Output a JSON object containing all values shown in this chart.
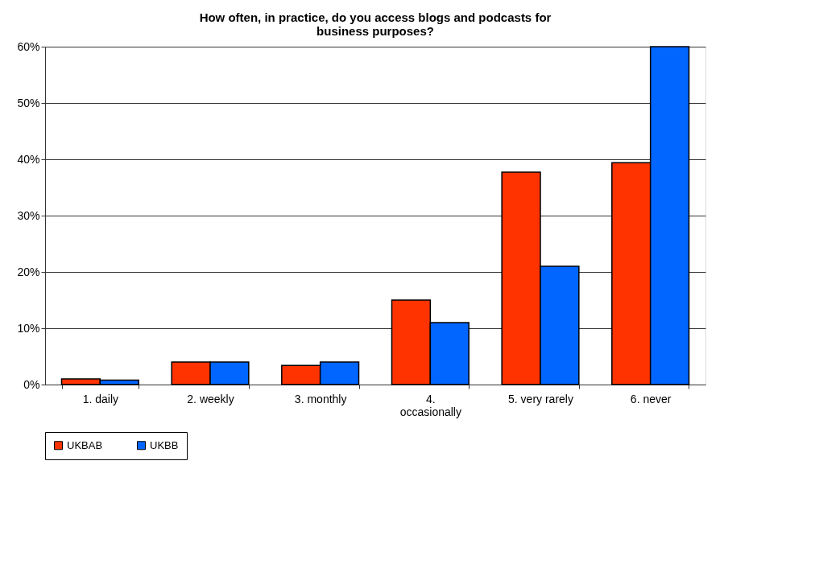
{
  "chart_data": {
    "type": "bar",
    "title": "How often, in practice, do you access blogs and podcasts for business purposes?",
    "categories": [
      "1. daily",
      "2. weekly",
      "3. monthly",
      "4. occasionally",
      "5. very rarely",
      "6. never"
    ],
    "series": [
      {
        "name": "UKBAB",
        "color": "#ff3300",
        "values": [
          1,
          4,
          3.4,
          15,
          37.7,
          39.4
        ]
      },
      {
        "name": "UKBB",
        "color": "#0066ff",
        "values": [
          0.8,
          4,
          4,
          11,
          21,
          60
        ]
      }
    ],
    "ylim": [
      0,
      60
    ],
    "yticks": [
      {
        "value": 0,
        "label": "0%"
      },
      {
        "value": 10,
        "label": "10%"
      },
      {
        "value": 20,
        "label": "20%"
      },
      {
        "value": 30,
        "label": "30%"
      },
      {
        "value": 40,
        "label": "40%"
      },
      {
        "value": 50,
        "label": "50%"
      },
      {
        "value": 60,
        "label": "60%"
      }
    ],
    "grid": "y",
    "legend": "bottom"
  }
}
